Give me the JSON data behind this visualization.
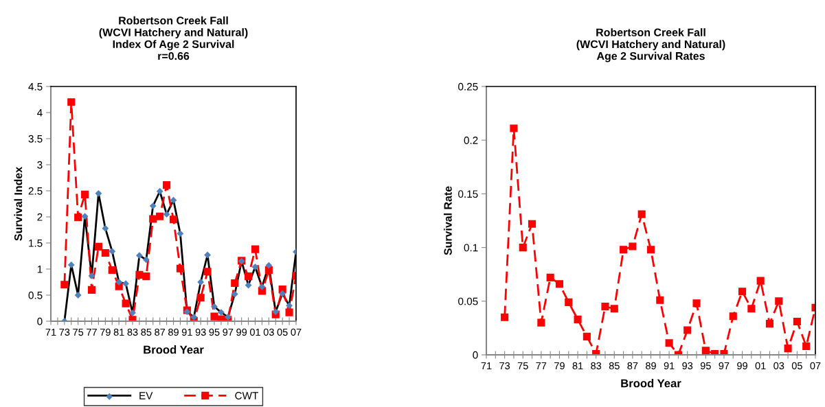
{
  "chart_data": [
    {
      "type": "line",
      "title": "Robertson Creek Fall\n(WCVI Hatchery and Natural)\nIndex Of Age 2 Survival\nr=0.66",
      "xlabel": "Brood Year",
      "ylabel": "Survival Index",
      "categories": [
        "71",
        null,
        "73",
        null,
        "75",
        null,
        "77",
        null,
        "79",
        null,
        "81",
        null,
        "83",
        null,
        "85",
        null,
        "87",
        null,
        "89",
        null,
        "91",
        null,
        "93",
        null,
        "95",
        null,
        "97",
        null,
        "99",
        null,
        "01",
        null,
        "03",
        null,
        "05",
        null,
        "07"
      ],
      "ylim": [
        0,
        4.5
      ],
      "yticks": [
        0,
        0.5,
        1,
        1.5,
        2,
        2.5,
        3,
        3.5,
        4,
        4.5
      ],
      "grid": false,
      "legend": "bottom",
      "series": [
        {
          "name": "EV",
          "color": "#000000",
          "marker": "diamond",
          "line_style": "solid",
          "colors": [
            "#4f81bd",
            "#4f81bd",
            "#4f81bd",
            "#4f81bd",
            "#4f81bd",
            "#4f81bd",
            "#4f81bd",
            "#4f81bd",
            "#4f81bd",
            "#4f81bd",
            "#4f81bd",
            "#4f81bd",
            "#4f81bd",
            "#4f81bd",
            "#4f81bd",
            "#4f81bd",
            "#4f81bd",
            "#4f81bd",
            "#4f81bd",
            "#4f81bd",
            "#4f81bd",
            "#4f81bd",
            "#4f81bd",
            "#4f81bd",
            "#4f81bd",
            "#4f81bd",
            "#4f81bd",
            "#4f81bd",
            "#4f81bd",
            "#4f81bd",
            "#4f81bd",
            "#4f81bd",
            "#4f81bd",
            "#4f81bd",
            "#4f81bd",
            "#4f81bd",
            "#4f81bd"
          ],
          "values": [
            null,
            null,
            0,
            1.08,
            0.5,
            2.01,
            0.87,
            2.45,
            1.78,
            1.34,
            0.75,
            0.72,
            0.16,
            1.26,
            1.18,
            2.21,
            2.49,
            2.05,
            2.32,
            1.68,
            0.18,
            0.08,
            0.75,
            1.27,
            0.28,
            0.17,
            0.08,
            0.52,
            1.15,
            0.69,
            1.04,
            0.66,
            1.07,
            0.18,
            0.53,
            0.3,
            1.33
          ]
        },
        {
          "name": "CWT",
          "color": "#ff0000",
          "marker": "square",
          "line_style": "dashed",
          "values": [
            null,
            null,
            0.7,
            4.2,
            1.99,
            2.43,
            0.6,
            1.43,
            1.31,
            0.98,
            0.67,
            0.34,
            0.03,
            0.89,
            0.86,
            1.96,
            2.01,
            2.61,
            1.95,
            1.01,
            0.21,
            0.01,
            0.45,
            0.95,
            0.09,
            0.04,
            0.03,
            0.73,
            1.16,
            0.86,
            1.38,
            0.58,
            0.98,
            0.13,
            0.61,
            0.17,
            0.87
          ]
        }
      ]
    },
    {
      "type": "line",
      "title": "Robertson Creek Fall\n(WCVI Hatchery and Natural)\nAge 2 Survival Rates",
      "xlabel": "Brood Year",
      "ylabel": "Survival Rate",
      "categories": [
        "71",
        null,
        "73",
        null,
        "75",
        null,
        "77",
        null,
        "79",
        null,
        "81",
        null,
        "83",
        null,
        "85",
        null,
        "87",
        null,
        "89",
        null,
        "91",
        null,
        "93",
        null,
        "95",
        null,
        "97",
        null,
        "99",
        null,
        "01",
        null,
        "03",
        null,
        "05",
        null,
        "07"
      ],
      "ylim": [
        0,
        0.25
      ],
      "yticks": [
        0,
        0.05,
        0.1,
        0.15,
        0.2,
        0.25
      ],
      "grid": false,
      "series": [
        {
          "color": "#ff0000",
          "marker": "square",
          "line_style": "dashed",
          "values": [
            null,
            null,
            0.035,
            0.211,
            0.1,
            0.122,
            0.03,
            0.072,
            0.066,
            0.049,
            0.033,
            0.017,
            0.001,
            0.045,
            0.043,
            0.098,
            0.101,
            0.131,
            0.098,
            0.051,
            0.011,
            0.0,
            0.023,
            0.048,
            0.004,
            0.001,
            0.001,
            0.036,
            0.059,
            0.043,
            0.069,
            0.029,
            0.05,
            0.006,
            0.031,
            0.008,
            0.044
          ]
        }
      ]
    }
  ]
}
